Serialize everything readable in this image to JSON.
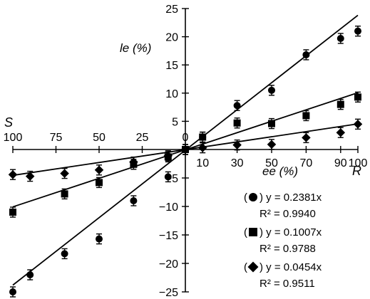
{
  "chart_data": {
    "type": "scatter",
    "title": "",
    "xlabel": "ee (%)",
    "ylabel": "le (%)",
    "x_left_label": "S",
    "x_right_label": "R",
    "xlim": [
      -100,
      100
    ],
    "ylim": [
      -25,
      25
    ],
    "x_ticks_left": [
      -100,
      -75,
      -50,
      -25,
      0
    ],
    "x_tick_labels_left": [
      "100",
      "75",
      "50",
      "25",
      "0"
    ],
    "x_ticks_right": [
      0,
      10,
      30,
      50,
      70,
      90,
      100
    ],
    "x_tick_labels_right": [
      "0",
      "10",
      "30",
      "50",
      "70",
      "90",
      "100"
    ],
    "y_ticks_pos": [
      5,
      10,
      15,
      20,
      25
    ],
    "y_tick_labels_pos": [
      "5",
      "10",
      "15",
      "20",
      "25"
    ],
    "y_ticks_neg": [
      -5,
      -10,
      -15,
      -20,
      -25
    ],
    "y_tick_labels_neg": [
      "−5",
      "−10",
      "−15",
      "−20",
      "−25"
    ],
    "series": [
      {
        "marker": "circle",
        "slope": 0.2381,
        "equation": "y = 0.2381x",
        "r2": "R² = 0.9940",
        "points": [
          {
            "x": -100,
            "y": -25.0
          },
          {
            "x": -90,
            "y": -22.0
          },
          {
            "x": -70,
            "y": -18.3
          },
          {
            "x": -50,
            "y": -15.7
          },
          {
            "x": -30,
            "y": -9.0
          },
          {
            "x": -10,
            "y": -4.8
          },
          {
            "x": 0,
            "y": 0
          },
          {
            "x": 10,
            "y": 2.2
          },
          {
            "x": 30,
            "y": 7.8
          },
          {
            "x": 50,
            "y": 10.5
          },
          {
            "x": 70,
            "y": 16.8
          },
          {
            "x": 90,
            "y": 19.7
          },
          {
            "x": 100,
            "y": 21.0
          }
        ]
      },
      {
        "marker": "square",
        "slope": 0.1007,
        "equation": "y = 0.1007x",
        "r2": "R² = 0.9788",
        "points": [
          {
            "x": -100,
            "y": -11.0
          },
          {
            "x": -70,
            "y": -7.8
          },
          {
            "x": -50,
            "y": -5.8
          },
          {
            "x": -30,
            "y": -2.6
          },
          {
            "x": -10,
            "y": -1.3
          },
          {
            "x": 0,
            "y": 0
          },
          {
            "x": 10,
            "y": 2.2
          },
          {
            "x": 30,
            "y": 4.7
          },
          {
            "x": 50,
            "y": 4.6
          },
          {
            "x": 70,
            "y": 6.0
          },
          {
            "x": 90,
            "y": 8.0
          },
          {
            "x": 100,
            "y": 9.3
          }
        ]
      },
      {
        "marker": "diamond",
        "slope": 0.0454,
        "equation": "y = 0.0454x",
        "r2": "R² = 0.9511",
        "points": [
          {
            "x": -100,
            "y": -4.4
          },
          {
            "x": -90,
            "y": -4.7
          },
          {
            "x": -70,
            "y": -4.2
          },
          {
            "x": -50,
            "y": -3.6
          },
          {
            "x": -30,
            "y": -2.2
          },
          {
            "x": -10,
            "y": -1.1
          },
          {
            "x": 0,
            "y": 0
          },
          {
            "x": 10,
            "y": 0.3
          },
          {
            "x": 30,
            "y": 0.8
          },
          {
            "x": 50,
            "y": 0.9
          },
          {
            "x": 70,
            "y": 2.1
          },
          {
            "x": 90,
            "y": 3.0
          },
          {
            "x": 100,
            "y": 4.5
          }
        ]
      }
    ]
  }
}
